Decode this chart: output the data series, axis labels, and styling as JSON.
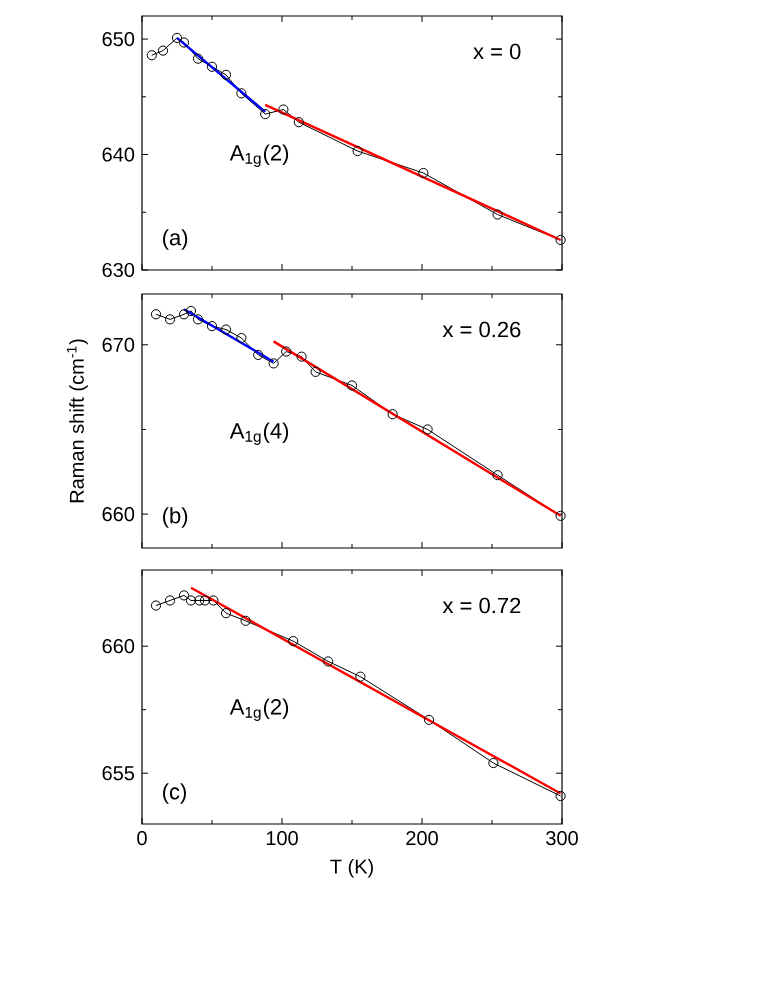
{
  "chart_data": [
    {
      "type": "line",
      "xlim": [
        0,
        300
      ],
      "xticks": [
        0,
        100,
        200,
        300
      ],
      "ylim": [
        630,
        652
      ],
      "yticks": [
        630,
        640,
        650
      ],
      "tick_labels": "y",
      "annotations": [
        "x = 0",
        "A$_{1g}$(2)",
        "(a)"
      ],
      "series": [
        {
          "color": "#000000",
          "marker": "circle",
          "x": [
            7,
            15,
            25,
            30,
            40,
            50,
            60,
            71,
            88,
            101,
            112,
            154,
            201,
            254,
            299
          ],
          "values": [
            648.6,
            649.0,
            650.1,
            649.7,
            648.3,
            647.6,
            646.9,
            645.3,
            643.5,
            643.9,
            642.8,
            640.3,
            638.4,
            634.8,
            632.6
          ]
        },
        {
          "color": "#0000ff",
          "marker": "none",
          "x": [
            25,
            88
          ],
          "values": [
            650.1,
            643.7
          ]
        },
        {
          "color": "#ff0000",
          "marker": "none",
          "x": [
            88,
            299
          ],
          "values": [
            644.3,
            632.6
          ]
        }
      ]
    },
    {
      "type": "line",
      "xlim": [
        0,
        300
      ],
      "xticks": [
        0,
        100,
        200,
        300
      ],
      "ylim": [
        658,
        673
      ],
      "yticks": [
        660,
        670
      ],
      "tick_labels": "y",
      "ylabel": "Raman shift (cm$^{-1}$)",
      "annotations": [
        "x = 0.26",
        "A$_{1g}$(4)",
        "(b)"
      ],
      "series": [
        {
          "color": "#000000",
          "marker": "circle",
          "x": [
            10,
            20,
            30,
            35,
            40,
            50,
            60,
            71,
            83,
            94,
            103,
            114,
            124,
            150,
            179,
            204,
            254,
            299
          ],
          "values": [
            671.8,
            671.5,
            671.8,
            672.0,
            671.5,
            671.1,
            670.9,
            670.4,
            669.4,
            668.9,
            669.6,
            669.3,
            668.4,
            667.6,
            665.9,
            665.0,
            662.3,
            659.9
          ]
        },
        {
          "color": "#0000ff",
          "marker": "none",
          "x": [
            30,
            94
          ],
          "values": [
            672.1,
            669.0
          ]
        },
        {
          "color": "#ff0000",
          "marker": "none",
          "x": [
            94,
            299
          ],
          "values": [
            670.2,
            659.9
          ]
        }
      ]
    },
    {
      "type": "line",
      "xlim": [
        0,
        300
      ],
      "xticks": [
        0,
        100,
        200,
        300
      ],
      "ylim": [
        653,
        663
      ],
      "yticks": [
        655,
        660
      ],
      "xlabel": "T (K)",
      "annotations": [
        "x = 0.72",
        "A$_{1g}$(2)",
        "(c)"
      ],
      "series": [
        {
          "color": "#000000",
          "marker": "circle",
          "x": [
            10,
            20,
            30,
            35,
            41,
            45,
            51,
            60,
            74,
            108,
            133,
            156,
            205,
            251,
            299
          ],
          "values": [
            661.6,
            661.8,
            662.0,
            661.8,
            661.8,
            661.8,
            661.8,
            661.3,
            661.0,
            660.2,
            659.4,
            658.8,
            657.1,
            655.4,
            654.1
          ]
        },
        {
          "color": "#ff0000",
          "marker": "none",
          "x": [
            35,
            299
          ],
          "values": [
            662.3,
            654.2
          ]
        }
      ]
    }
  ]
}
